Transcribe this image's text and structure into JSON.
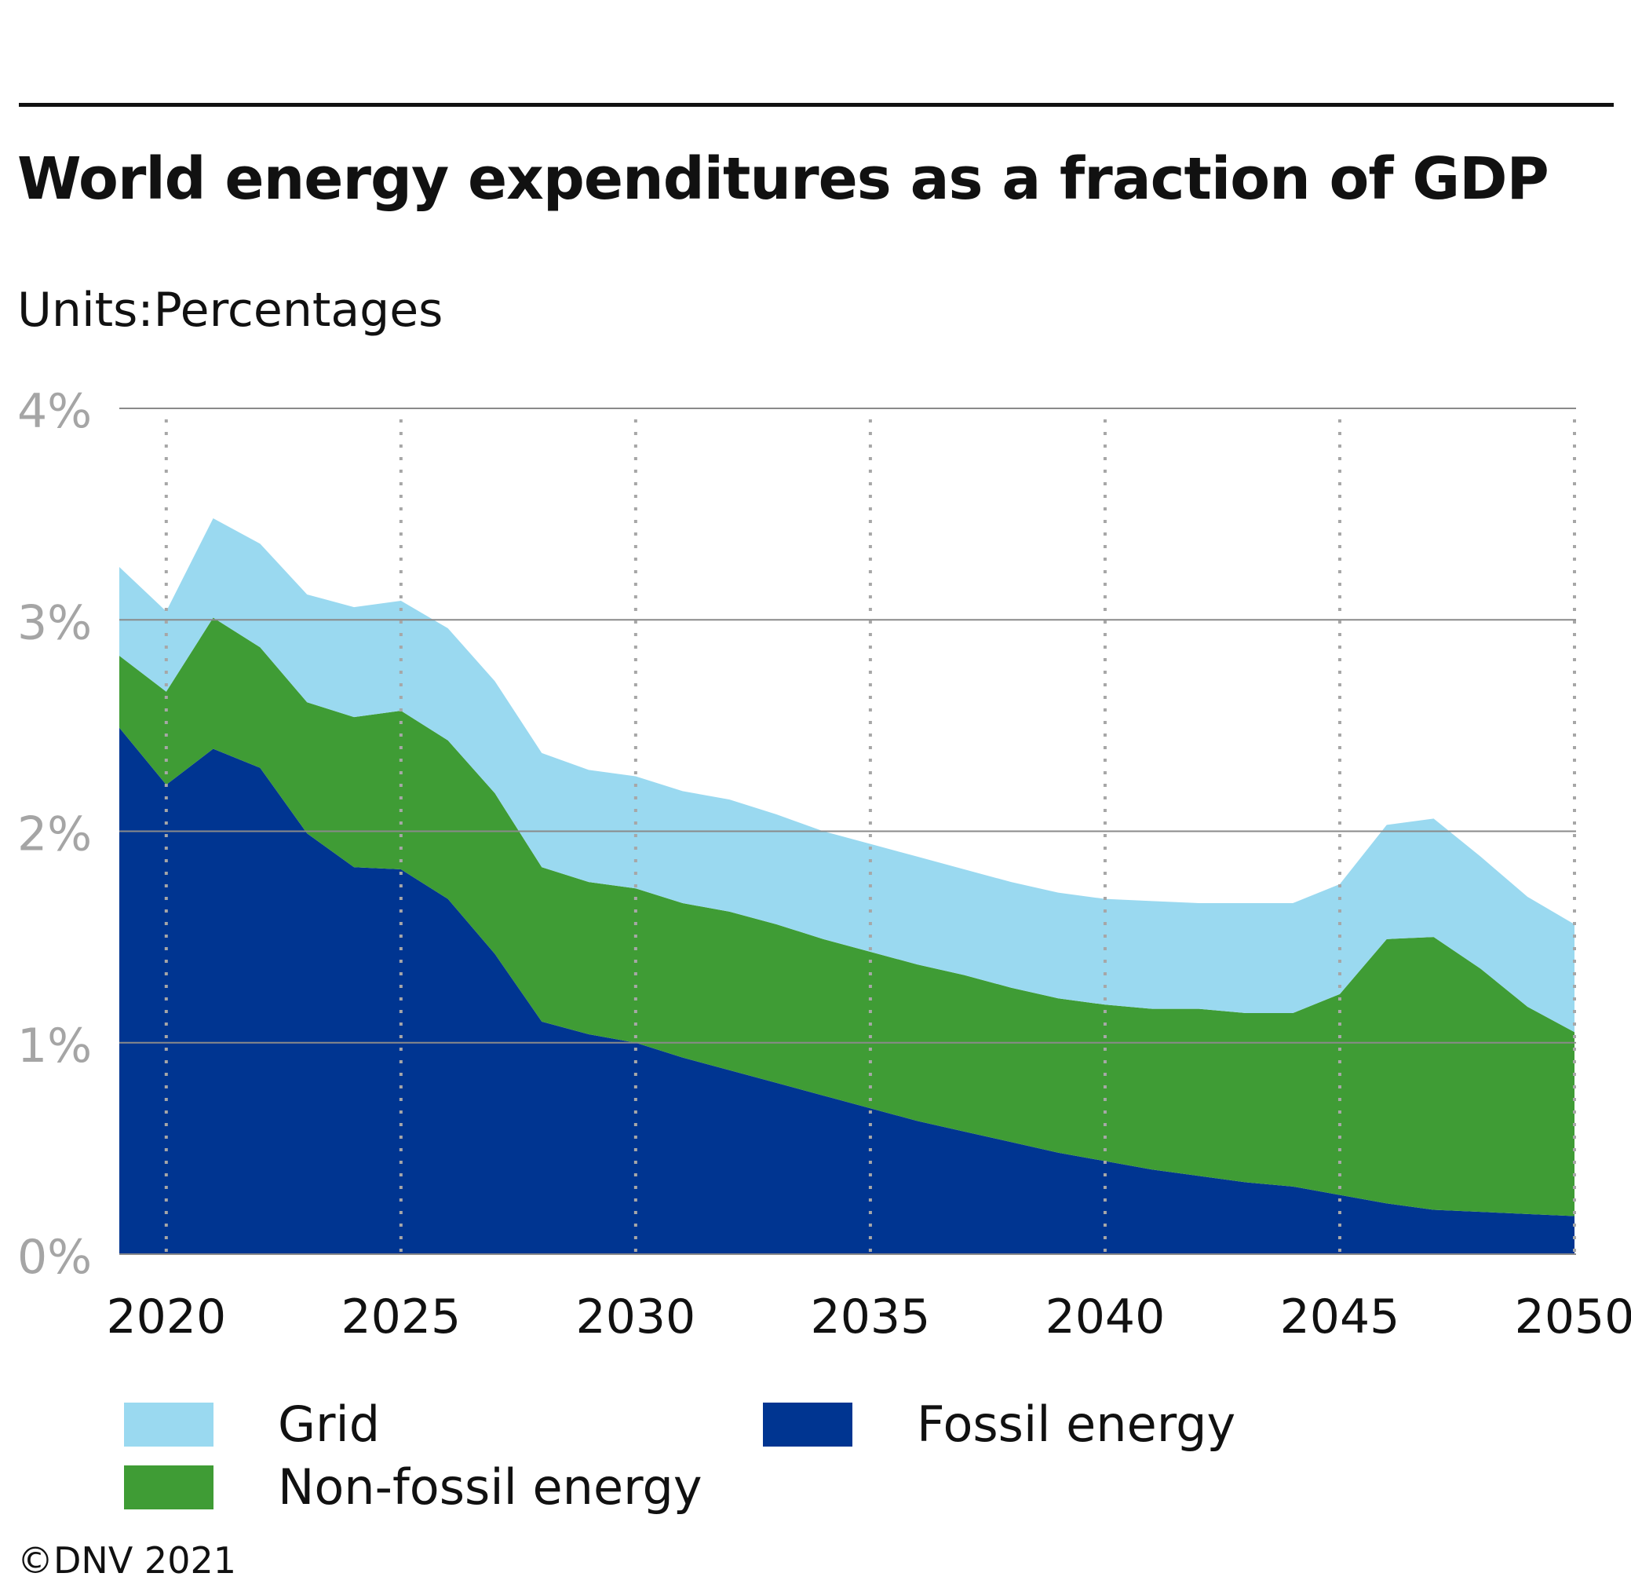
{
  "title": "World energy expenditures as a fraction of GDP",
  "units": "Units:Percentages",
  "credit": "©DNV 2021",
  "chart_data": {
    "type": "area",
    "stacked": true,
    "x": [
      2019,
      2020,
      2021,
      2022,
      2023,
      2024,
      2025,
      2026,
      2027,
      2028,
      2029,
      2030,
      2031,
      2032,
      2033,
      2034,
      2035,
      2036,
      2037,
      2038,
      2039,
      2040,
      2041,
      2042,
      2043,
      2044,
      2045,
      2046,
      2047,
      2048,
      2049,
      2050
    ],
    "xticks": [
      2020,
      2025,
      2030,
      2035,
      2040,
      2045,
      2050
    ],
    "ylim": [
      0,
      4
    ],
    "yticks": [
      0,
      1,
      2,
      3,
      4
    ],
    "ytick_labels": [
      "0%",
      "1%",
      "2%",
      "3%",
      "4%"
    ],
    "grid": "horizontal solid, vertical dotted at labeled years",
    "legend_position": "bottom",
    "series": [
      {
        "name": "Fossil energy",
        "color": "#003591",
        "values": [
          2.49,
          2.22,
          2.39,
          2.3,
          1.99,
          1.83,
          1.82,
          1.68,
          1.42,
          1.1,
          1.04,
          1.0,
          0.93,
          0.87,
          0.81,
          0.75,
          0.69,
          0.63,
          0.58,
          0.53,
          0.48,
          0.44,
          0.4,
          0.37,
          0.34,
          0.32,
          0.28,
          0.24,
          0.21,
          0.2,
          0.19,
          0.18
        ]
      },
      {
        "name": "Non-fossil energy",
        "color": "#3f9c35",
        "values": [
          0.34,
          0.44,
          0.62,
          0.57,
          0.62,
          0.71,
          0.75,
          0.75,
          0.76,
          0.73,
          0.72,
          0.73,
          0.73,
          0.75,
          0.75,
          0.74,
          0.74,
          0.74,
          0.74,
          0.73,
          0.73,
          0.74,
          0.76,
          0.79,
          0.8,
          0.82,
          0.95,
          1.25,
          1.29,
          1.15,
          0.98,
          0.87
        ]
      },
      {
        "name": "Grid",
        "color": "#9ad9f0",
        "values": [
          0.42,
          0.38,
          0.47,
          0.49,
          0.51,
          0.52,
          0.52,
          0.53,
          0.53,
          0.54,
          0.53,
          0.53,
          0.53,
          0.53,
          0.52,
          0.51,
          0.51,
          0.51,
          0.5,
          0.5,
          0.5,
          0.5,
          0.51,
          0.5,
          0.52,
          0.52,
          0.52,
          0.54,
          0.56,
          0.53,
          0.52,
          0.51
        ]
      }
    ]
  },
  "legend": [
    {
      "label": "Grid",
      "color": "#9ad9f0"
    },
    {
      "label": "Non-fossil energy",
      "color": "#3f9c35"
    },
    {
      "label": "Fossil energy",
      "color": "#003591"
    }
  ]
}
